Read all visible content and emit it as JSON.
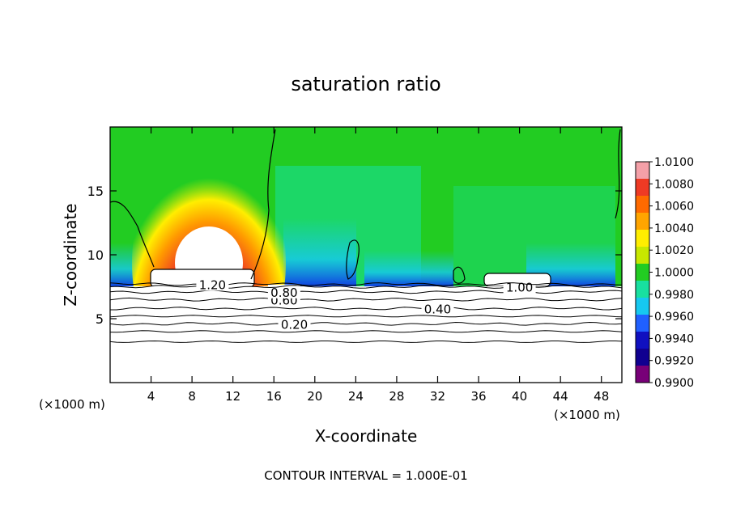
{
  "chart_data": {
    "type": "heatmap",
    "title": "saturation ratio",
    "xlabel": "X-coordinate",
    "ylabel": "Z-coordinate",
    "x_unit_left": "(×1000 m)",
    "x_unit_right": "(×1000 m)",
    "xlim": [
      0,
      50
    ],
    "ylim": [
      0,
      20
    ],
    "x_ticks": [
      4,
      8,
      12,
      16,
      20,
      24,
      28,
      32,
      36,
      40,
      44,
      48
    ],
    "y_ticks": [
      5,
      10,
      15
    ],
    "footer": "CONTOUR INTERVAL = 1.000E-01",
    "colorbar": {
      "labels": [
        "1.0100",
        "1.0080",
        "1.0060",
        "1.0040",
        "1.0020",
        "1.0000",
        "0.9980",
        "0.9960",
        "0.9940",
        "0.9920",
        "0.9900"
      ],
      "colors": [
        "#f4a0a8",
        "#ee3a24",
        "#ff6a00",
        "#ffa500",
        "#ffee00",
        "#c8e800",
        "#22cc22",
        "#18e0a0",
        "#16c8f0",
        "#2060ff",
        "#1010c0",
        "#100090",
        "#780078"
      ]
    },
    "contours": [
      {
        "level": "0.20",
        "z": 4.6,
        "label_x": 18
      },
      {
        "level": "0.40",
        "z": 5.8,
        "label_x": 32
      },
      {
        "level": "0.60",
        "z": 6.5,
        "label_x": 17
      },
      {
        "level": "0.80",
        "z": 7.1,
        "label_x": 17
      },
      {
        "level": "1.00",
        "z": 7.5,
        "label_x": 40
      },
      {
        "level": "1.20",
        "z": 7.7,
        "label_x": 10
      }
    ]
  }
}
